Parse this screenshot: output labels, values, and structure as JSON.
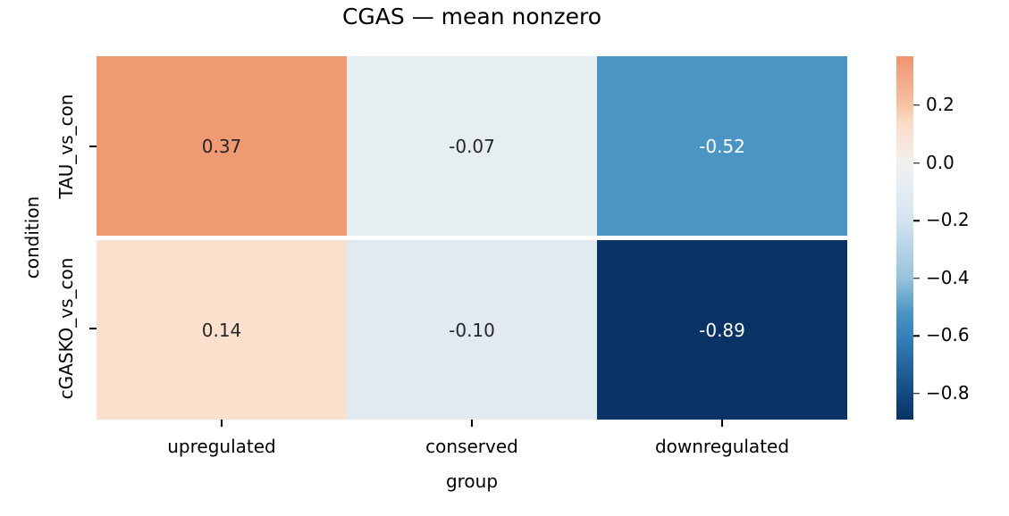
{
  "chart_data": {
    "type": "heatmap",
    "title": "CGAS — mean nonzero",
    "xlabel": "group",
    "ylabel": "condition",
    "columns": [
      "upregulated",
      "conserved",
      "downregulated"
    ],
    "rows": [
      "TAU_vs_con",
      "cGASKO_vs_con"
    ],
    "values": [
      [
        0.37,
        -0.07,
        -0.52
      ],
      [
        0.14,
        -0.1,
        -0.89
      ]
    ],
    "cell_labels": [
      [
        "0.37",
        "-0.07",
        "-0.52"
      ],
      [
        "0.14",
        "-0.10",
        "-0.89"
      ]
    ],
    "cell_colors": [
      [
        "#EF9A72",
        "#E7EEF2",
        "#4B95C4"
      ],
      [
        "#FBE0CD",
        "#E2EAF1",
        "#093265"
      ]
    ],
    "cell_text_colors": [
      [
        "#262626",
        "#262626",
        "#FFFFFF"
      ],
      [
        "#262626",
        "#262626",
        "#FFFFFF"
      ]
    ],
    "grid_line_color": "#FFFFFF",
    "colorbar": {
      "vmin": -0.89,
      "vmax": 0.37,
      "ticks": [
        0.2,
        0.0,
        -0.2,
        -0.4,
        -0.6,
        -0.8
      ],
      "tick_labels": [
        "0.2",
        "0.0",
        "−0.2",
        "−0.4",
        "−0.6",
        "−0.8"
      ],
      "gradient_stops": [
        {
          "pos": 0,
          "color": "#EE9470"
        },
        {
          "pos": 13.5,
          "color": "#F7C2A4"
        },
        {
          "pos": 18.3,
          "color": "#FBDCC7"
        },
        {
          "pos": 29.4,
          "color": "#F2F1EF"
        },
        {
          "pos": 34.9,
          "color": "#E7EEF2"
        },
        {
          "pos": 45.2,
          "color": "#D3E4EF"
        },
        {
          "pos": 61.1,
          "color": "#98C3DD"
        },
        {
          "pos": 70.6,
          "color": "#4B95C4"
        },
        {
          "pos": 77.0,
          "color": "#3581B9"
        },
        {
          "pos": 92.9,
          "color": "#134A80"
        },
        {
          "pos": 100,
          "color": "#093264"
        }
      ]
    }
  }
}
